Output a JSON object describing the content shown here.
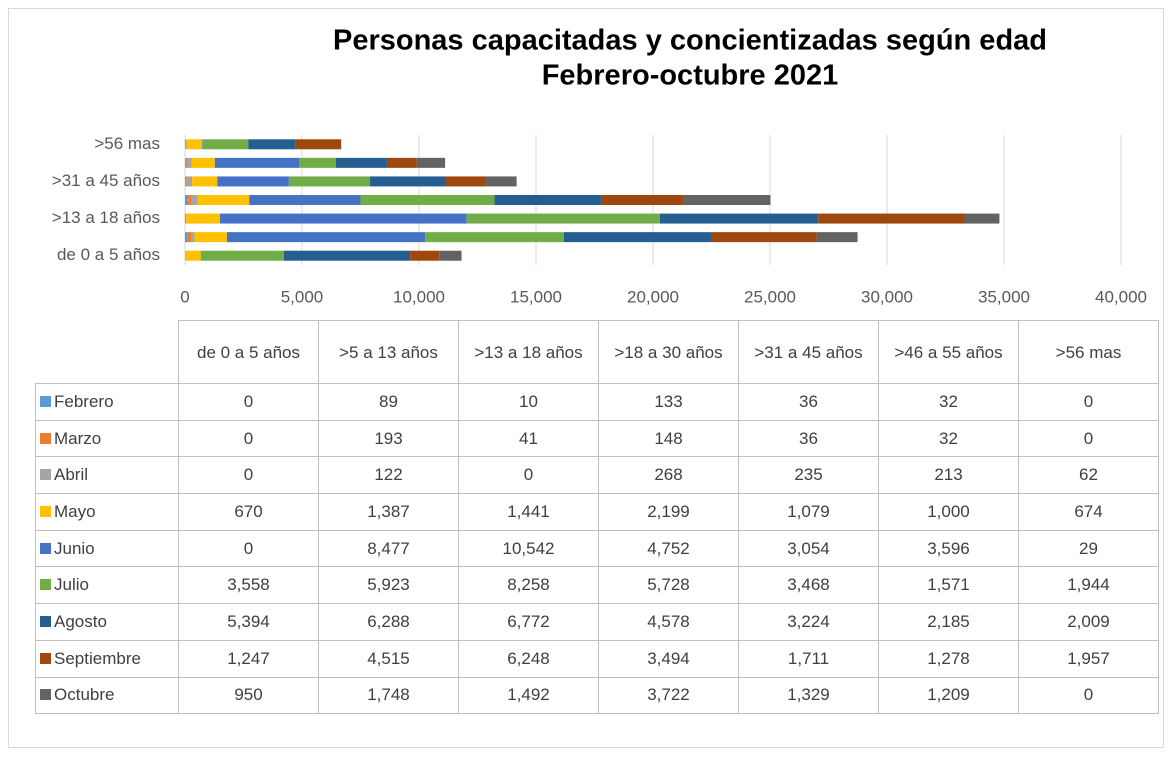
{
  "chart_data": {
    "type": "bar",
    "orientation": "horizontal",
    "stacked": true,
    "title": "Personas capacitadas y concientizadas según edad",
    "subtitle": "Febrero-octubre  2021",
    "categories": [
      "de 0 a 5 años",
      ">5 a 13 años",
      ">13 a 18 años",
      ">18 a 30 años",
      ">31 a 45 años",
      ">46 a 55 años",
      ">56 mas"
    ],
    "series": [
      {
        "name": "Febrero",
        "color": "#5b9bd5",
        "values": [
          0,
          89,
          10,
          133,
          36,
          32,
          0
        ],
        "value_labels": [
          "0",
          "89",
          "10",
          "133",
          "36",
          "32",
          "0"
        ]
      },
      {
        "name": "Marzo",
        "color": "#ed7d31",
        "values": [
          0,
          193,
          41,
          148,
          36,
          32,
          0
        ],
        "value_labels": [
          "0",
          "193",
          "41",
          "148",
          "36",
          "32",
          "0"
        ]
      },
      {
        "name": "Abril",
        "color": "#a5a5a5",
        "values": [
          0,
          122,
          0,
          268,
          235,
          213,
          62
        ],
        "value_labels": [
          "0",
          "122",
          "0",
          "268",
          "235",
          "213",
          "62"
        ]
      },
      {
        "name": "Mayo",
        "color": "#ffc000",
        "values": [
          670,
          1387,
          1441,
          2199,
          1079,
          1000,
          674
        ],
        "value_labels": [
          "670",
          "1,387",
          "1,441",
          "2,199",
          "1,079",
          "1,000",
          "674"
        ]
      },
      {
        "name": "Junio",
        "color": "#4472c4",
        "values": [
          0,
          8477,
          10542,
          4752,
          3054,
          3596,
          29
        ],
        "value_labels": [
          "0",
          "8,477",
          "10,542",
          "4,752",
          "3,054",
          "3,596",
          "29"
        ]
      },
      {
        "name": "Julio",
        "color": "#70ad47",
        "values": [
          3558,
          5923,
          8258,
          5728,
          3468,
          1571,
          1944
        ],
        "value_labels": [
          "3,558",
          "5,923",
          "8,258",
          "5,728",
          "3,468",
          "1,571",
          "1,944"
        ]
      },
      {
        "name": "Agosto",
        "color": "#255e91",
        "values": [
          5394,
          6288,
          6772,
          4578,
          3224,
          2185,
          2009
        ],
        "value_labels": [
          "5,394",
          "6,288",
          "6,772",
          "4,578",
          "3,224",
          "2,185",
          "2,009"
        ]
      },
      {
        "name": "Septiembre",
        "color": "#9e480e",
        "values": [
          1247,
          4515,
          6248,
          3494,
          1711,
          1278,
          1957
        ],
        "value_labels": [
          "1,247",
          "4,515",
          "6,248",
          "3,494",
          "1,711",
          "1,278",
          "1,957"
        ]
      },
      {
        "name": "Octubre",
        "color": "#636363",
        "values": [
          950,
          1748,
          1492,
          3722,
          1329,
          1209,
          0
        ],
        "value_labels": [
          "950",
          "1,748",
          "1,492",
          "3,722",
          "1,329",
          "1,209",
          "0"
        ]
      }
    ],
    "xlim": [
      0,
      40000
    ],
    "xticks": [
      0,
      {
        "value": 5000,
        "label": "5,000"
      },
      {
        "value": 10000,
        "label": "10,000"
      },
      {
        "value": 15000,
        "label": "15,000"
      },
      {
        "value": 20000,
        "label": "20,000"
      },
      {
        "value": 25000,
        "label": "25,000"
      },
      {
        "value": 30000,
        "label": "30,000"
      },
      {
        "value": 35000,
        "label": "35,000"
      },
      {
        "value": 40000,
        "label": "40,000"
      }
    ],
    "grid": true
  }
}
